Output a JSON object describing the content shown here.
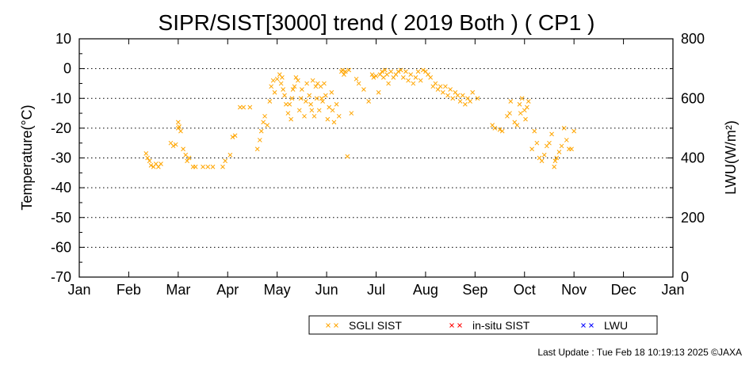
{
  "chart_data": {
    "type": "scatter",
    "title": "SIPR/SIST[3000] trend ( 2019 Both ) ( CP1 )",
    "ylabel": "Temperature(°C)",
    "y2label": "LWU(W/m²)",
    "ylim": [
      -70,
      10
    ],
    "y2lim": [
      0,
      800
    ],
    "yticks": [
      10,
      0,
      -10,
      -20,
      -30,
      -40,
      -50,
      -60,
      -70
    ],
    "y2ticks": [
      800,
      600,
      400,
      200,
      0
    ],
    "months": [
      "Jan",
      "Feb",
      "Mar",
      "Apr",
      "May",
      "Jun",
      "Jul",
      "Aug",
      "Sep",
      "Oct",
      "Nov",
      "Dec",
      "Jan"
    ],
    "grid": "horizontal-dotted",
    "legend_position": "bottom",
    "colors": {
      "sgli": "#FFA500",
      "insitu": "#FF0000",
      "lwu": "#0000FF"
    },
    "series": [
      {
        "name": "SGLI SIST",
        "marker": "x",
        "color": "#FFA500",
        "points": [
          [
            1.35,
            -28.5
          ],
          [
            1.38,
            -30
          ],
          [
            1.42,
            -31
          ],
          [
            1.45,
            -32.5
          ],
          [
            1.5,
            -33
          ],
          [
            1.55,
            -32
          ],
          [
            1.6,
            -33
          ],
          [
            1.65,
            -32
          ],
          [
            1.85,
            -25
          ],
          [
            1.9,
            -26
          ],
          [
            1.95,
            -25.5
          ],
          [
            2.0,
            -18
          ],
          [
            2.0,
            -20
          ],
          [
            2.02,
            -19.5
          ],
          [
            2.05,
            -21
          ],
          [
            2.1,
            -27
          ],
          [
            2.15,
            -29
          ],
          [
            2.18,
            -31
          ],
          [
            2.22,
            -30
          ],
          [
            2.3,
            -33
          ],
          [
            2.35,
            -33
          ],
          [
            2.5,
            -33
          ],
          [
            2.6,
            -33
          ],
          [
            2.7,
            -33
          ],
          [
            2.9,
            -33
          ],
          [
            2.95,
            -31
          ],
          [
            3.05,
            -29
          ],
          [
            3.1,
            -23
          ],
          [
            3.15,
            -22.5
          ],
          [
            3.25,
            -13
          ],
          [
            3.32,
            -13
          ],
          [
            3.45,
            -13
          ],
          [
            3.6,
            -27
          ],
          [
            3.65,
            -24
          ],
          [
            3.68,
            -21
          ],
          [
            3.72,
            -18
          ],
          [
            3.75,
            -16
          ],
          [
            3.8,
            -19
          ],
          [
            3.85,
            -11
          ],
          [
            3.88,
            -6
          ],
          [
            3.92,
            -4
          ],
          [
            3.95,
            -8
          ],
          [
            4.0,
            -3.5
          ],
          [
            4.05,
            -2
          ],
          [
            4.08,
            -5
          ],
          [
            4.1,
            -3
          ],
          [
            4.12,
            -7
          ],
          [
            4.15,
            -9
          ],
          [
            4.18,
            -12
          ],
          [
            4.22,
            -15
          ],
          [
            4.25,
            -12
          ],
          [
            4.28,
            -17
          ],
          [
            4.3,
            -10
          ],
          [
            4.32,
            -7
          ],
          [
            4.35,
            -6
          ],
          [
            4.38,
            -3
          ],
          [
            4.42,
            -4
          ],
          [
            4.45,
            -14
          ],
          [
            4.48,
            -10
          ],
          [
            4.5,
            -7
          ],
          [
            4.55,
            -16
          ],
          [
            4.58,
            -11
          ],
          [
            4.6,
            -5
          ],
          [
            4.65,
            -9
          ],
          [
            4.68,
            -12
          ],
          [
            4.7,
            -14
          ],
          [
            4.72,
            -4
          ],
          [
            4.75,
            -16
          ],
          [
            4.78,
            -6
          ],
          [
            4.8,
            -10
          ],
          [
            4.82,
            -5
          ],
          [
            4.85,
            -14
          ],
          [
            4.88,
            -6
          ],
          [
            4.9,
            -10
          ],
          [
            4.92,
            -11
          ],
          [
            4.95,
            -5
          ],
          [
            4.98,
            -9
          ],
          [
            5.02,
            -17
          ],
          [
            5.05,
            -13
          ],
          [
            5.1,
            -8
          ],
          [
            5.12,
            -14
          ],
          [
            5.15,
            -18
          ],
          [
            5.2,
            -12
          ],
          [
            5.25,
            -16
          ],
          [
            5.3,
            -1
          ],
          [
            5.32,
            -0.5
          ],
          [
            5.35,
            -2
          ],
          [
            5.38,
            -1
          ],
          [
            5.42,
            -29.5
          ],
          [
            5.45,
            -0.5
          ],
          [
            5.5,
            -15
          ],
          [
            5.6,
            -3.5
          ],
          [
            5.65,
            -5
          ],
          [
            5.75,
            -7
          ],
          [
            5.85,
            -11
          ],
          [
            5.92,
            -2
          ],
          [
            5.95,
            -3
          ],
          [
            6.0,
            -2.5
          ],
          [
            6.05,
            -8
          ],
          [
            6.08,
            -2
          ],
          [
            6.12,
            -1
          ],
          [
            6.15,
            -3
          ],
          [
            6.18,
            -0.5
          ],
          [
            6.22,
            -2
          ],
          [
            6.25,
            -5
          ],
          [
            6.3,
            -1
          ],
          [
            6.35,
            -3
          ],
          [
            6.4,
            -2
          ],
          [
            6.45,
            -1
          ],
          [
            6.5,
            -0.5
          ],
          [
            6.55,
            -3
          ],
          [
            6.6,
            -1
          ],
          [
            6.65,
            -4
          ],
          [
            6.7,
            -2
          ],
          [
            6.75,
            -5
          ],
          [
            6.8,
            -3
          ],
          [
            6.85,
            -1
          ],
          [
            6.9,
            -4
          ],
          [
            6.95,
            -0.5
          ],
          [
            7.0,
            -1
          ],
          [
            7.05,
            -2
          ],
          [
            7.1,
            -3
          ],
          [
            7.15,
            -6
          ],
          [
            7.2,
            -5
          ],
          [
            7.25,
            -7
          ],
          [
            7.3,
            -6
          ],
          [
            7.35,
            -8
          ],
          [
            7.4,
            -6
          ],
          [
            7.45,
            -9
          ],
          [
            7.5,
            -7
          ],
          [
            7.55,
            -10
          ],
          [
            7.6,
            -8
          ],
          [
            7.65,
            -9
          ],
          [
            7.7,
            -11
          ],
          [
            7.75,
            -9
          ],
          [
            7.8,
            -12
          ],
          [
            7.85,
            -10
          ],
          [
            7.9,
            -11
          ],
          [
            7.95,
            -8
          ],
          [
            8.05,
            -10
          ],
          [
            8.35,
            -19
          ],
          [
            8.4,
            -20
          ],
          [
            8.5,
            -20.5
          ],
          [
            8.55,
            -21
          ],
          [
            8.65,
            -16
          ],
          [
            8.7,
            -15
          ],
          [
            8.72,
            -11
          ],
          [
            8.8,
            -18
          ],
          [
            8.85,
            -19
          ],
          [
            8.9,
            -12
          ],
          [
            8.92,
            -15
          ],
          [
            8.95,
            -10
          ],
          [
            9.0,
            -14
          ],
          [
            9.02,
            -17
          ],
          [
            9.05,
            -13
          ],
          [
            9.08,
            -11
          ],
          [
            9.15,
            -27
          ],
          [
            9.2,
            -21
          ],
          [
            9.25,
            -25
          ],
          [
            9.3,
            -30
          ],
          [
            9.35,
            -31
          ],
          [
            9.4,
            -29
          ],
          [
            9.45,
            -26
          ],
          [
            9.5,
            -25
          ],
          [
            9.55,
            -22
          ],
          [
            9.6,
            -33
          ],
          [
            9.62,
            -31
          ],
          [
            9.65,
            -30
          ],
          [
            9.7,
            -28
          ],
          [
            9.75,
            -26
          ],
          [
            9.8,
            -20
          ],
          [
            9.85,
            -24
          ],
          [
            9.9,
            -27
          ],
          [
            9.95,
            -27
          ],
          [
            10.0,
            -21
          ]
        ]
      },
      {
        "name": "in-situ SIST",
        "marker": "x",
        "color": "#FF0000",
        "points": []
      },
      {
        "name": "LWU",
        "marker": "x",
        "color": "#0000FF",
        "points": []
      }
    ]
  },
  "footer": {
    "last_update": "Last Update : Tue Feb 18 10:19:13 2025  ©JAXA"
  }
}
